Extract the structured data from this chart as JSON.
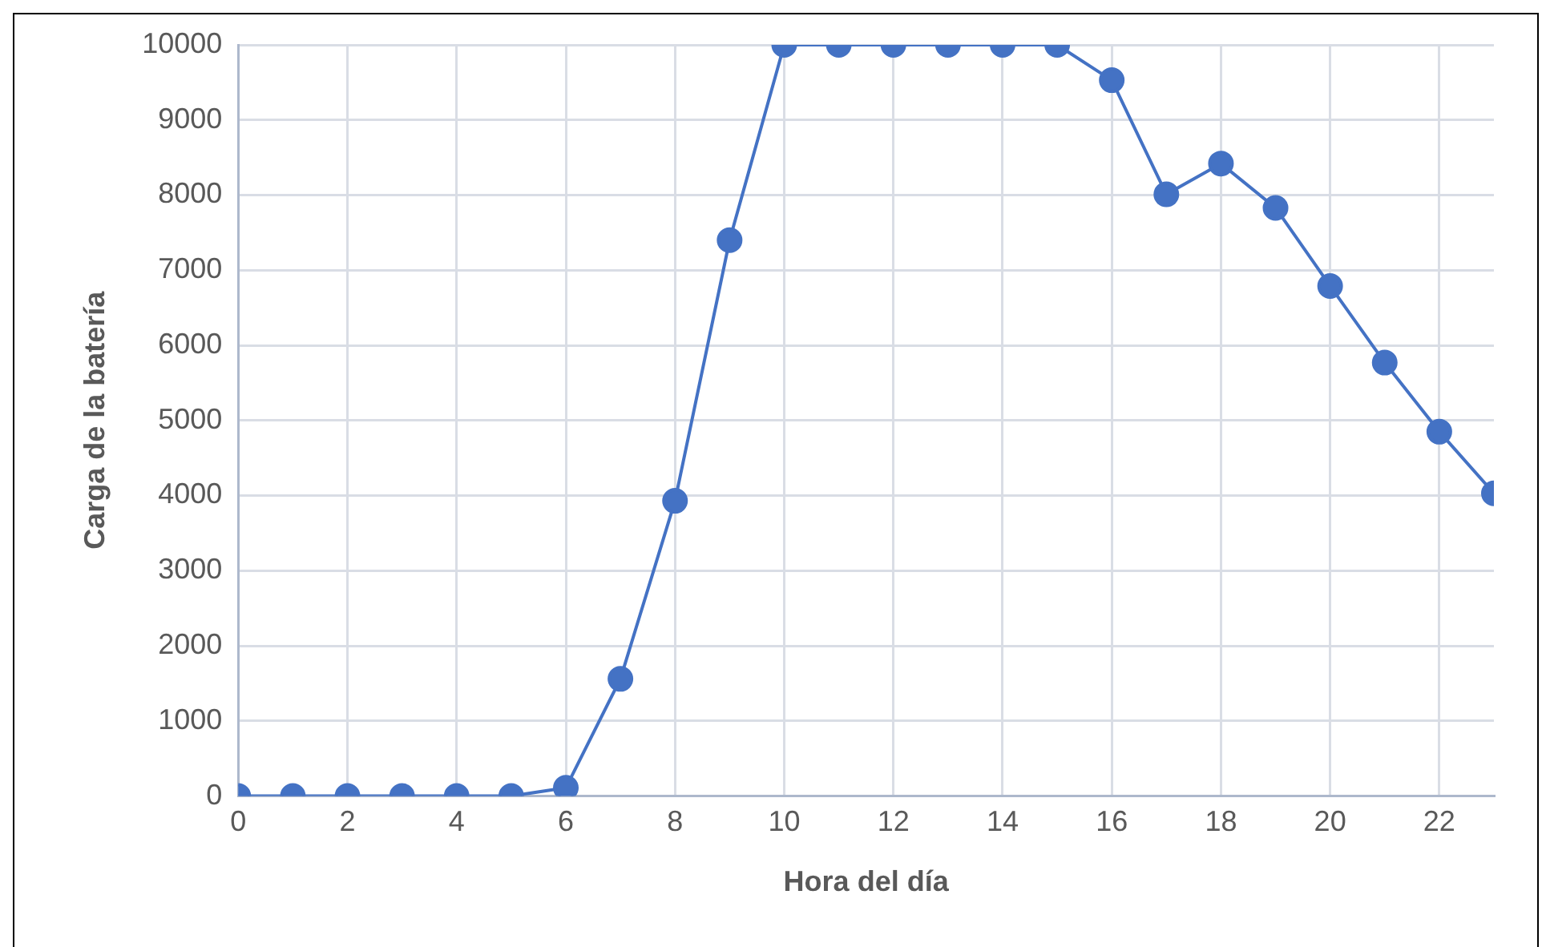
{
  "chart_data": {
    "type": "line",
    "xlabel": "Hora del día",
    "ylabel": "Carga de la batería",
    "x": [
      0,
      1,
      2,
      3,
      4,
      5,
      6,
      7,
      8,
      9,
      10,
      11,
      12,
      13,
      14,
      15,
      16,
      17,
      18,
      19,
      20,
      21,
      22,
      23
    ],
    "series": [
      {
        "color": "#4472c4",
        "values": [
          0,
          0,
          0,
          0,
          0,
          0,
          110,
          1560,
          3930,
          7400,
          10000,
          10000,
          10000,
          10000,
          10000,
          10000,
          9530,
          8010,
          8420,
          7830,
          6790,
          5770,
          4850,
          4030
        ]
      }
    ],
    "xlim": [
      0,
      23
    ],
    "xticks": [
      0,
      2,
      4,
      6,
      8,
      10,
      12,
      14,
      16,
      18,
      20,
      22
    ],
    "ylim": [
      0,
      10000
    ],
    "yticks": [
      0,
      1000,
      2000,
      3000,
      4000,
      5000,
      6000,
      7000,
      8000,
      9000,
      10000
    ],
    "grid": true,
    "legend": false,
    "marker": "circle",
    "line_style": "solid"
  }
}
